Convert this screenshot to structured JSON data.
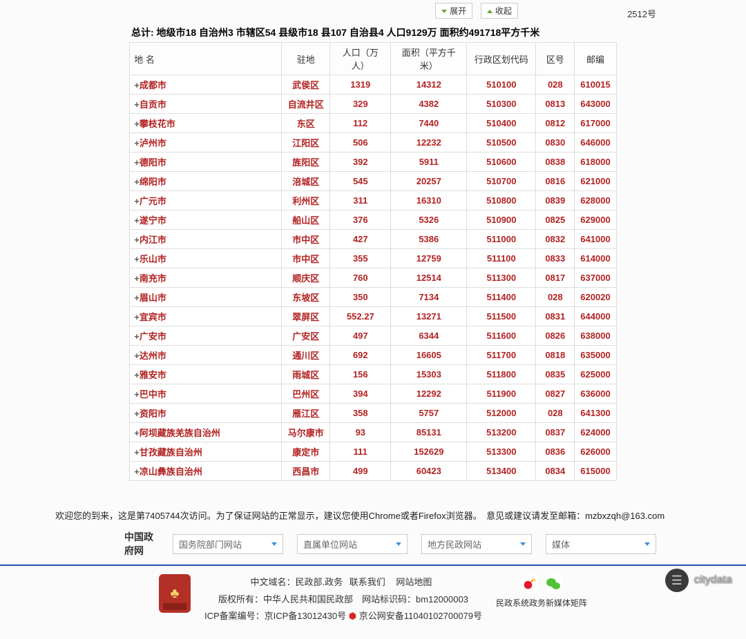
{
  "buttons": {
    "expand": "展开",
    "collapse": "收起"
  },
  "top_right": "2512号",
  "summary": "总计: 地级市18 自治州3 市辖区54 县级市18 县107 自治县4 人口9129万 面积约491718平方千米",
  "headers": [
    "地 名",
    "驻地",
    "人口（万人）",
    "面积（平方千米）",
    "行政区划代码",
    "区号",
    "邮编"
  ],
  "rows": [
    {
      "name": "成都市",
      "zd": "武侯区",
      "pop": "1319",
      "area": "14312",
      "code": "510100",
      "anum": "028",
      "zip": "610015"
    },
    {
      "name": "自贡市",
      "zd": "自流井区",
      "pop": "329",
      "area": "4382",
      "code": "510300",
      "anum": "0813",
      "zip": "643000"
    },
    {
      "name": "攀枝花市",
      "zd": "东区",
      "pop": "112",
      "area": "7440",
      "code": "510400",
      "anum": "0812",
      "zip": "617000"
    },
    {
      "name": "泸州市",
      "zd": "江阳区",
      "pop": "506",
      "area": "12232",
      "code": "510500",
      "anum": "0830",
      "zip": "646000"
    },
    {
      "name": "德阳市",
      "zd": "旌阳区",
      "pop": "392",
      "area": "5911",
      "code": "510600",
      "anum": "0838",
      "zip": "618000"
    },
    {
      "name": "绵阳市",
      "zd": "涪城区",
      "pop": "545",
      "area": "20257",
      "code": "510700",
      "anum": "0816",
      "zip": "621000"
    },
    {
      "name": "广元市",
      "zd": "利州区",
      "pop": "311",
      "area": "16310",
      "code": "510800",
      "anum": "0839",
      "zip": "628000"
    },
    {
      "name": "遂宁市",
      "zd": "船山区",
      "pop": "376",
      "area": "5326",
      "code": "510900",
      "anum": "0825",
      "zip": "629000"
    },
    {
      "name": "内江市",
      "zd": "市中区",
      "pop": "427",
      "area": "5386",
      "code": "511000",
      "anum": "0832",
      "zip": "641000"
    },
    {
      "name": "乐山市",
      "zd": "市中区",
      "pop": "355",
      "area": "12759",
      "code": "511100",
      "anum": "0833",
      "zip": "614000"
    },
    {
      "name": "南充市",
      "zd": "顺庆区",
      "pop": "760",
      "area": "12514",
      "code": "511300",
      "anum": "0817",
      "zip": "637000"
    },
    {
      "name": "眉山市",
      "zd": "东坡区",
      "pop": "350",
      "area": "7134",
      "code": "511400",
      "anum": "028",
      "zip": "620020"
    },
    {
      "name": "宜宾市",
      "zd": "翠屏区",
      "pop": "552.27",
      "area": "13271",
      "code": "511500",
      "anum": "0831",
      "zip": "644000"
    },
    {
      "name": "广安市",
      "zd": "广安区",
      "pop": "497",
      "area": "6344",
      "code": "511600",
      "anum": "0826",
      "zip": "638000"
    },
    {
      "name": "达州市",
      "zd": "通川区",
      "pop": "692",
      "area": "16605",
      "code": "511700",
      "anum": "0818",
      "zip": "635000"
    },
    {
      "name": "雅安市",
      "zd": "雨城区",
      "pop": "156",
      "area": "15303",
      "code": "511800",
      "anum": "0835",
      "zip": "625000"
    },
    {
      "name": "巴中市",
      "zd": "巴州区",
      "pop": "394",
      "area": "12292",
      "code": "511900",
      "anum": "0827",
      "zip": "636000"
    },
    {
      "name": "资阳市",
      "zd": "雁江区",
      "pop": "358",
      "area": "5757",
      "code": "512000",
      "anum": "028",
      "zip": "641300"
    },
    {
      "name": "阿坝藏族羌族自治州",
      "zd": "马尔康市",
      "pop": "93",
      "area": "85131",
      "code": "513200",
      "anum": "0837",
      "zip": "624000"
    },
    {
      "name": "甘孜藏族自治州",
      "zd": "康定市",
      "pop": "111",
      "area": "152629",
      "code": "513300",
      "anum": "0836",
      "zip": "626000"
    },
    {
      "name": "凉山彝族自治州",
      "zd": "西昌市",
      "pop": "499",
      "area": "60423",
      "code": "513400",
      "anum": "0834",
      "zip": "615000"
    }
  ],
  "welcome": "欢迎您的到来，这是第7405744次访问。为了保证网站的正常显示，建议您使用Chrome或者Firefox浏览器。　意见或建议请发至邮箱：mzbxzqh@163.com",
  "nav": {
    "label": "中国政府网",
    "dropdowns": [
      "国务院部门网站",
      "直属单位网站",
      "地方民政网站",
      "媒体"
    ]
  },
  "footer": {
    "line1_a": "中文域名：民政部.政务",
    "line1_b": "联系我们",
    "line1_c": "网站地图",
    "line2": "版权所有：中华人民共和国民政部　网站标识码：bm12000003",
    "line3_a": "ICP备案编号：京ICP备13012430号",
    "line3_b": "京公网安备11040102700079号",
    "social_label": "民政系统政务新媒体矩阵"
  },
  "citydata": "citydata"
}
